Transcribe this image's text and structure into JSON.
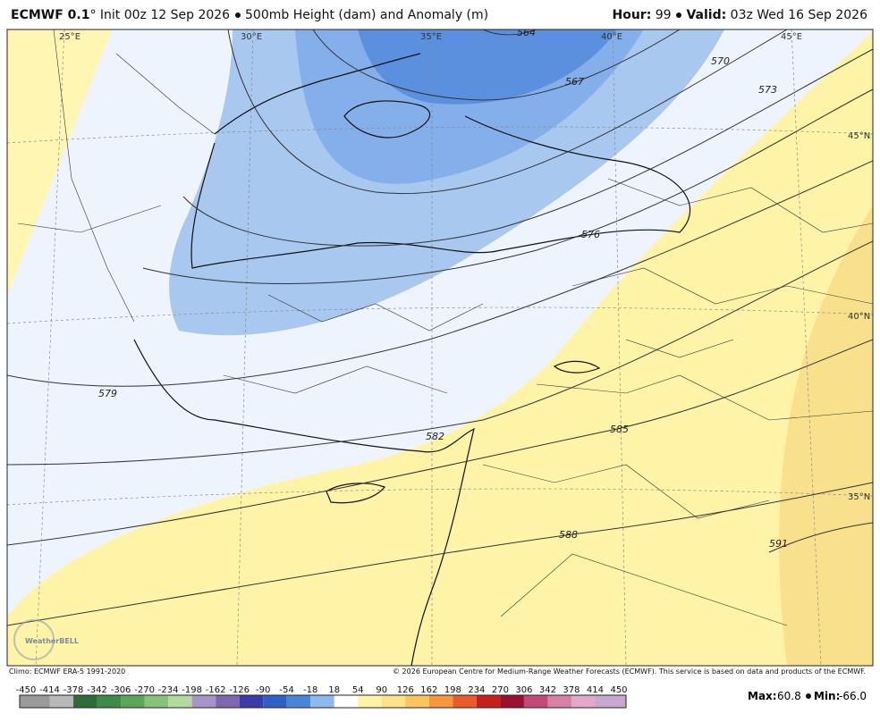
{
  "header": {
    "model": "ECMWF 0.1",
    "degree": "°",
    "init": "Init 00z 12 Sep 2026",
    "product": "500mb Height (dam) and Anomaly (m)",
    "hour_label": "Hour:",
    "hour": "99",
    "valid_label": "Valid:",
    "valid": "03z Wed 16 Sep 2026"
  },
  "map": {
    "longitude_labels": [
      "25°E",
      "30°E",
      "35°E",
      "40°E",
      "45°E"
    ],
    "latitude_labels": [
      "45°N",
      "40°N",
      "35°N"
    ],
    "contour_labels": [
      "564",
      "567",
      "570",
      "573",
      "576",
      "579",
      "582",
      "585",
      "588",
      "591"
    ],
    "logo": "WeatherBELL"
  },
  "footer": {
    "climo": "Climo: ECMWF ERA-5 1991-2020",
    "copyright": "© 2026 European Centre for Medium-Range Weather Forecasts (ECMWF). This service is based on data and products of the ECMWF."
  },
  "colorbar": {
    "labels": [
      -450,
      -414,
      -378,
      -342,
      -306,
      -270,
      -234,
      -198,
      -162,
      -126,
      -90,
      -54,
      -18,
      18,
      54,
      90,
      126,
      162,
      198,
      234,
      270,
      306,
      342,
      378,
      414,
      450
    ],
    "colors": [
      "#9a9a9a",
      "#b8b8b8",
      "#2e6b3a",
      "#3e8a48",
      "#5aa55a",
      "#86c27a",
      "#b4d9a0",
      "#a794c8",
      "#7d67b0",
      "#3a3aa8",
      "#2f5fc8",
      "#4a86d8",
      "#8fb8ec",
      "#ffffff",
      "#fff3a8",
      "#fde28a",
      "#fbc45e",
      "#f7963c",
      "#ec5a2a",
      "#c81e1e",
      "#9a1030",
      "#c24a78",
      "#d880a6",
      "#e3a8c6",
      "#c8a8d0"
    ]
  },
  "stats": {
    "max_label": "Max:",
    "max": "60.8",
    "min_label": "Min:",
    "min": "-66.0"
  }
}
